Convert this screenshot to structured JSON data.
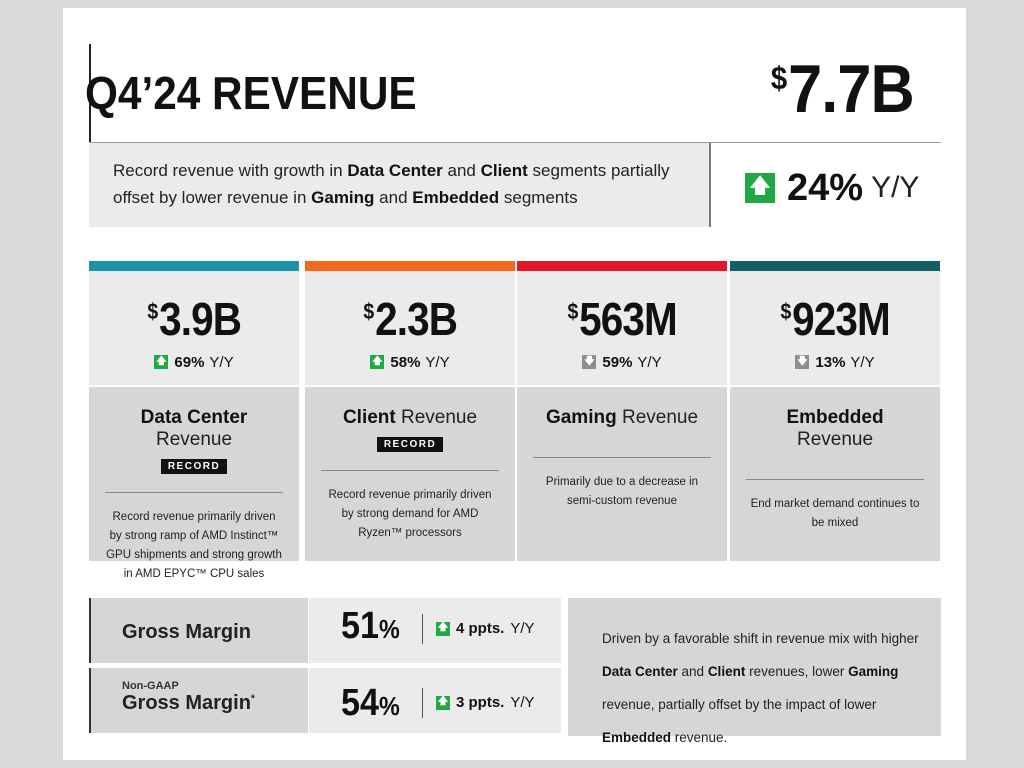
{
  "header": {
    "title": "Q4’24 REVENUE",
    "total_currency": "$",
    "total_value": "7.7B",
    "summary": {
      "part1": "Record revenue with growth in ",
      "dc": "Data Center",
      "and1": " and ",
      "client": "Client",
      "part2": " segments partially offset by lower revenue in ",
      "gaming": "Gaming",
      "and2": " and ",
      "embedded": "Embedded",
      "part3": " segments"
    },
    "growth_value": "24%",
    "growth_unit": "Y/Y",
    "growth_direction": "up"
  },
  "segments": [
    {
      "currency": "$",
      "value": "3.9B",
      "change": "69%",
      "change_unit": "Y/Y",
      "direction": "up",
      "name_bold": "Data Center",
      "name_rest": " Revenue",
      "badge": "RECORD",
      "description": "Record revenue primarily driven by strong ramp of AMD Instinct™ GPU shipments and strong growth in AMD EPYC™ CPU sales",
      "color": "#1b93a8"
    },
    {
      "currency": "$",
      "value": "2.3B",
      "change": "58%",
      "change_unit": "Y/Y",
      "direction": "up",
      "name_bold": "Client",
      "name_rest": " Revenue",
      "badge": "RECORD",
      "description": "Record revenue primarily driven by strong demand for AMD Ryzen™ processors",
      "color": "#f26b1d"
    },
    {
      "currency": "$",
      "value": "563M",
      "change": "59%",
      "change_unit": "Y/Y",
      "direction": "down",
      "name_bold": "Gaming",
      "name_rest": " Revenue",
      "description": "Primarily due to a decrease in semi-custom revenue",
      "color": "#e3152b"
    },
    {
      "currency": "$",
      "value": "923M",
      "change": "13%",
      "change_unit": "Y/Y",
      "direction": "down",
      "name_bold": "Embedded",
      "name_rest": " Revenue",
      "description": "End market demand continues to be mixed",
      "color": "#135f66"
    }
  ],
  "margins": [
    {
      "sub": "",
      "label": "Gross Margin",
      "value": "51",
      "pct": "%",
      "change": "4 ppts.",
      "change_unit": "Y/Y",
      "direction": "up"
    },
    {
      "sub": "Non-GAAP",
      "label": "Gross Margin",
      "sup": "*",
      "value": "54",
      "pct": "%",
      "change": "3 ppts.",
      "change_unit": "Y/Y",
      "direction": "up"
    }
  ],
  "margin_note": {
    "t1": "Driven by a favorable shift in revenue mix with higher ",
    "dc": "Data Center",
    "and1": " and ",
    "client": "Client",
    "t2": " revenues, lower ",
    "gaming": "Gaming",
    "t3": " revenue, partially offset by the impact of lower ",
    "embedded": "Embedded",
    "t4": " revenue."
  },
  "icons": {
    "up": "arrow-up-icon",
    "down": "arrow-down-icon"
  },
  "colors": {
    "up": "#1fa845",
    "down": "#8e8e8e"
  }
}
